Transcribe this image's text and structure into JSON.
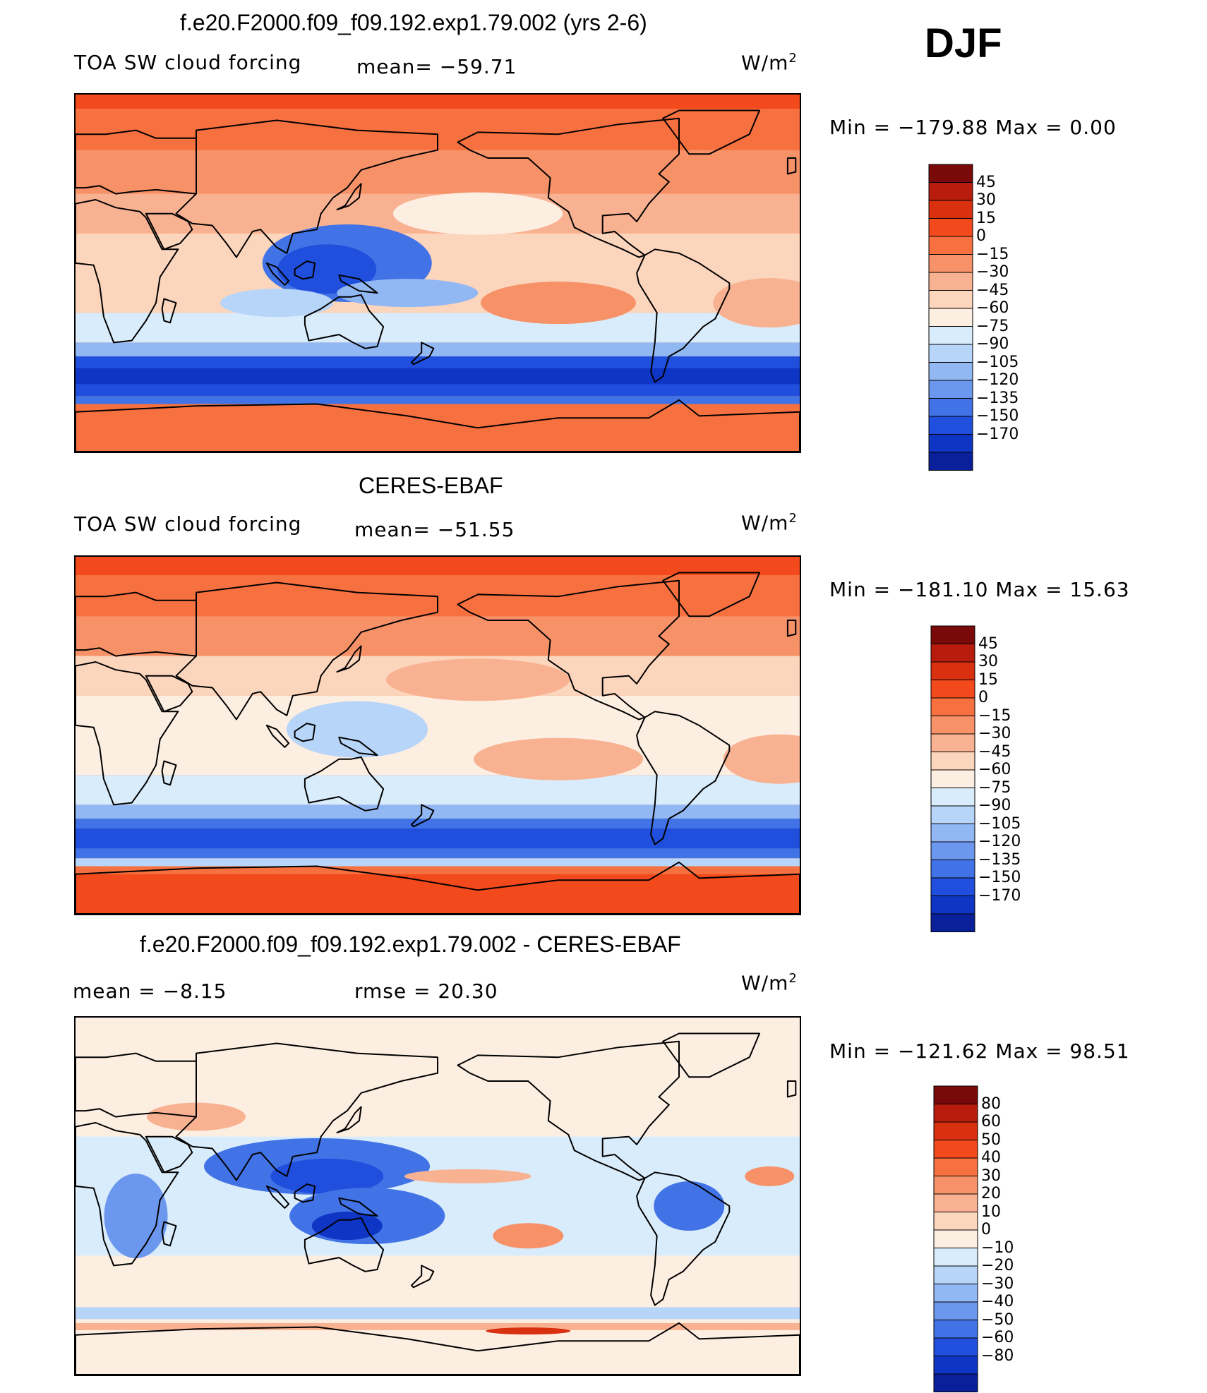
{
  "season": "DJF",
  "units_label": "W/m",
  "units_exp": "2",
  "panels": [
    {
      "id": "model",
      "title": "f.e20.F2000.f09_f09.192.exp1.79.002 (yrs 2-6)",
      "variable": "TOA SW cloud forcing",
      "stat_text": "mean= −59.71",
      "minmax_text": "Min  =  −179.88  Max  =     0.00",
      "colorbar": {
        "labels": [
          "45",
          "30",
          "15",
          "0",
          "−15",
          "−30",
          "−45",
          "−60",
          "−75",
          "−90",
          "−105",
          "−120",
          "−135",
          "−150",
          "−170"
        ],
        "colors": [
          "#7a0a0a",
          "#b81c0c",
          "#d9300f",
          "#f24a1c",
          "#f7703f",
          "#f79168",
          "#f9b291",
          "#fcd5bd",
          "#fdeee2",
          "#d9ecfb",
          "#b7d5f8",
          "#92b8f3",
          "#6c97ee",
          "#4173e6",
          "#1f4fdc",
          "#0f35c4",
          "#0a1f9a"
        ]
      },
      "mean_value": -59.71
    },
    {
      "id": "obs",
      "title": "CERES-EBAF",
      "variable": "TOA SW cloud forcing",
      "stat_text": "mean= −51.55",
      "minmax_text": "Min  =  −181.10  Max  =    15.63",
      "colorbar": {
        "labels": [
          "45",
          "30",
          "15",
          "0",
          "−15",
          "−30",
          "−45",
          "−60",
          "−75",
          "−90",
          "−105",
          "−120",
          "−135",
          "−150",
          "−170"
        ],
        "colors": [
          "#7a0a0a",
          "#b81c0c",
          "#d9300f",
          "#f24a1c",
          "#f7703f",
          "#f79168",
          "#f9b291",
          "#fcd5bd",
          "#fdeee2",
          "#d9ecfb",
          "#b7d5f8",
          "#92b8f3",
          "#6c97ee",
          "#4173e6",
          "#1f4fdc",
          "#0f35c4",
          "#0a1f9a"
        ]
      },
      "mean_value": -51.55
    },
    {
      "id": "diff",
      "title": "f.e20.F2000.f09_f09.192.exp1.79.002 - CERES-EBAF",
      "mean_text": "mean  =     −8.15",
      "rmse_text": "rmse  =     20.30",
      "minmax_text": "Min  =  −121.62  Max  =    98.51",
      "colorbar": {
        "labels": [
          "80",
          "60",
          "50",
          "40",
          "30",
          "20",
          "10",
          "0",
          "−10",
          "−20",
          "−30",
          "−40",
          "−50",
          "−60",
          "−80"
        ],
        "colors": [
          "#7a0a0a",
          "#b81c0c",
          "#d9300f",
          "#f24a1c",
          "#f7703f",
          "#f79168",
          "#f9b291",
          "#fcd5bd",
          "#fdeee2",
          "#d9ecfb",
          "#b7d5f8",
          "#92b8f3",
          "#6c97ee",
          "#4173e6",
          "#1f4fdc",
          "#0f35c4",
          "#0a1f9a"
        ]
      },
      "mean_value": -8.15,
      "rmse_value": 20.3
    }
  ]
}
